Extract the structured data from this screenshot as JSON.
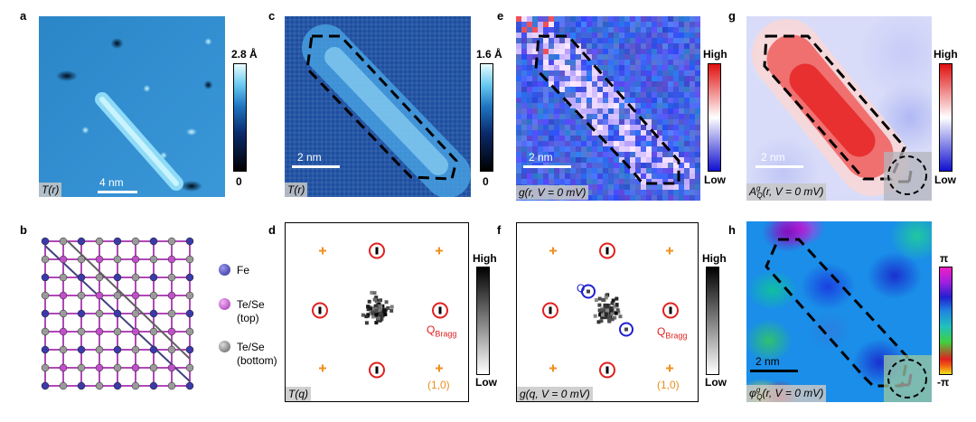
{
  "panels": {
    "a": {
      "letter": "a",
      "tag": "T(r)",
      "scale": "4 nm",
      "cbar_top": "2.8 Å",
      "cbar_bottom": "0"
    },
    "b": {
      "letter": "b",
      "legend": [
        {
          "label": "Fe",
          "color": "#3a3aa8"
        },
        {
          "label": "Te/Se\n(top)",
          "color": "#c050c8"
        },
        {
          "label": "Te/Se\n(bottom)",
          "color": "#8a8a8a"
        }
      ]
    },
    "c": {
      "letter": "c",
      "tag": "T(r)",
      "scale": "2 nm",
      "cbar_top": "1.6 Å",
      "cbar_bottom": "0"
    },
    "d": {
      "letter": "d",
      "tag": "T(q)",
      "q_bragg": "Q",
      "q_bragg_sub": "Bragg",
      "index": "(1,0)",
      "cbar_top": "High",
      "cbar_bottom": "Low"
    },
    "e": {
      "letter": "e",
      "tag": "g(r, V = 0 mV)",
      "scale": "2 nm",
      "cbar_top": "High",
      "cbar_bottom": "Low"
    },
    "f": {
      "letter": "f",
      "tag": "g(q, V = 0 mV)",
      "q_bragg": "Q",
      "q_bragg_sub": "Bragg",
      "q_label": "Q",
      "index": "(1,0)",
      "cbar_top": "High",
      "cbar_bottom": "Low"
    },
    "g": {
      "letter": "g",
      "tag": "A(r, V = 0 mV)",
      "tag_sym": "A",
      "tag_sub": "Q",
      "tag_sup": "g",
      "tag_rest": "(r, V = 0 mV)",
      "scale": "2 nm",
      "cbar_top": "High",
      "cbar_bottom": "Low"
    },
    "h": {
      "letter": "h",
      "tag_sym": "φ",
      "tag_sub": "Q",
      "tag_sup": "g",
      "tag_rest": "(r, V = 0 mV)",
      "scale": "2 nm",
      "cbar_top": "π",
      "cbar_bottom": "-π"
    }
  }
}
